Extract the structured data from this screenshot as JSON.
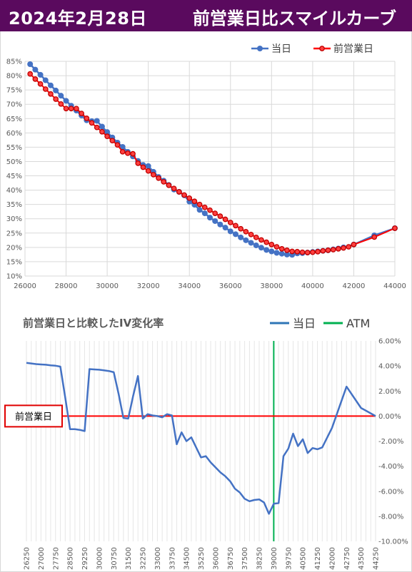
{
  "header": {
    "date": "2024年2月28日",
    "title": "前営業日比スマイルカーブ"
  },
  "chart_data": [
    {
      "type": "line",
      "title": "",
      "xlim": [
        26000,
        44000
      ],
      "ylim": [
        10,
        85
      ],
      "x_ticks": [
        "26000",
        "28000",
        "30000",
        "32000",
        "34000",
        "36000",
        "38000",
        "40000",
        "42000",
        "44000"
      ],
      "y_ticks": [
        "10%",
        "15%",
        "20%",
        "25%",
        "30%",
        "35%",
        "40%",
        "45%",
        "50%",
        "55%",
        "60%",
        "65%",
        "70%",
        "75%",
        "80%",
        "85%"
      ],
      "legend": [
        "当日",
        "前営業日"
      ],
      "legend_position": "top-right",
      "series": [
        {
          "name": "当日",
          "color": "#4472c4",
          "points": [
            [
              26250,
              84
            ],
            [
              26500,
              82.1
            ],
            [
              26750,
              80.3
            ],
            [
              27000,
              78.4
            ],
            [
              27250,
              76.6
            ],
            [
              27500,
              74.8
            ],
            [
              27750,
              73
            ],
            [
              28000,
              71.2
            ],
            [
              28250,
              69.5
            ],
            [
              28500,
              67.8
            ],
            [
              28750,
              66.1
            ],
            [
              29000,
              64.4
            ],
            [
              29250,
              64.1
            ],
            [
              29500,
              64.2
            ],
            [
              29750,
              62.2
            ],
            [
              30000,
              60.3
            ],
            [
              30250,
              58.4
            ],
            [
              30500,
              56.6
            ],
            [
              30750,
              55.1
            ],
            [
              31000,
              53.4
            ],
            [
              31250,
              51.8
            ],
            [
              31500,
              50.2
            ],
            [
              31750,
              48.8
            ],
            [
              32000,
              48.4
            ],
            [
              32250,
              46.4
            ],
            [
              32500,
              44.6
            ],
            [
              32750,
              43.3
            ],
            [
              33000,
              41.8
            ],
            [
              33250,
              40.2
            ],
            [
              33500,
              39.4
            ],
            [
              33750,
              38.2
            ],
            [
              34000,
              36
            ],
            [
              34250,
              34.9
            ],
            [
              34500,
              33.1
            ],
            [
              34750,
              31.9
            ],
            [
              35000,
              30.4
            ],
            [
              35250,
              29.2
            ],
            [
              35500,
              28
            ],
            [
              35750,
              26.9
            ],
            [
              36000,
              25.6
            ],
            [
              36250,
              24.6
            ],
            [
              36500,
              23.5
            ],
            [
              36750,
              22.5
            ],
            [
              37000,
              21.6
            ],
            [
              37250,
              20.7
            ],
            [
              37500,
              19.9
            ],
            [
              37750,
              19.1
            ],
            [
              38000,
              18.6
            ],
            [
              38250,
              18.1
            ],
            [
              38500,
              17.8
            ],
            [
              38750,
              17.5
            ],
            [
              39000,
              17.4
            ],
            [
              39250,
              17.9
            ],
            [
              39500,
              18
            ],
            [
              39750,
              18.2
            ],
            [
              40000,
              18.4
            ],
            [
              40250,
              18.6
            ],
            [
              40500,
              18.8
            ],
            [
              40750,
              19
            ],
            [
              41000,
              19.3
            ],
            [
              41250,
              19.6
            ],
            [
              41500,
              20
            ],
            [
              42000,
              21
            ],
            [
              43000,
              24.2
            ],
            [
              44000,
              26.7
            ]
          ]
        },
        {
          "name": "前営業日",
          "color": "#ff0000",
          "points": [
            [
              26250,
              80.6
            ],
            [
              26500,
              78.8
            ],
            [
              26750,
              77.1
            ],
            [
              27000,
              75.3
            ],
            [
              27250,
              73.6
            ],
            [
              27500,
              71.8
            ],
            [
              27750,
              70.1
            ],
            [
              28000,
              68.5
            ],
            [
              28250,
              68.5
            ],
            [
              28500,
              68.5
            ],
            [
              28750,
              66.8
            ],
            [
              29000,
              65.1
            ],
            [
              29250,
              63.5
            ],
            [
              29500,
              61.9
            ],
            [
              29750,
              60.4
            ],
            [
              30000,
              58.8
            ],
            [
              30250,
              57.3
            ],
            [
              30500,
              55.8
            ],
            [
              30750,
              53.4
            ],
            [
              31000,
              52.9
            ],
            [
              31250,
              52.7
            ],
            [
              31500,
              49.4
            ],
            [
              31750,
              48
            ],
            [
              32000,
              46.7
            ],
            [
              32250,
              45.4
            ],
            [
              32500,
              44.2
            ],
            [
              32750,
              42.9
            ],
            [
              33000,
              41.7
            ],
            [
              33250,
              40.6
            ],
            [
              33500,
              39.4
            ],
            [
              33750,
              38.3
            ],
            [
              34000,
              37.2
            ],
            [
              34250,
              36.1
            ],
            [
              34500,
              35
            ],
            [
              34750,
              34
            ],
            [
              35000,
              33
            ],
            [
              35250,
              31.9
            ],
            [
              35500,
              30.9
            ],
            [
              35750,
              29.8
            ],
            [
              36000,
              28.7
            ],
            [
              36250,
              27.6
            ],
            [
              36500,
              26.5
            ],
            [
              36750,
              25.5
            ],
            [
              37000,
              24.5
            ],
            [
              37250,
              23.5
            ],
            [
              37500,
              22.6
            ],
            [
              37750,
              21.8
            ],
            [
              38000,
              21
            ],
            [
              38250,
              20.2
            ],
            [
              38500,
              19.5
            ],
            [
              38750,
              19
            ],
            [
              39000,
              18.6
            ],
            [
              39250,
              18.5
            ],
            [
              39500,
              18.3
            ],
            [
              39750,
              18.2
            ],
            [
              40000,
              18.3
            ],
            [
              40250,
              18.5
            ],
            [
              40500,
              18.8
            ],
            [
              40750,
              19
            ],
            [
              41000,
              19.2
            ],
            [
              41250,
              19.5
            ],
            [
              41500,
              19.8
            ],
            [
              41750,
              20.2
            ],
            [
              42000,
              21
            ],
            [
              43000,
              23.6
            ],
            [
              44000,
              26.7
            ]
          ]
        }
      ]
    },
    {
      "type": "line",
      "title": "前営業日と比較したIV変化率",
      "ylim": [
        -10,
        6
      ],
      "y_ticks": [
        "6.00%",
        "4.00%",
        "2.00%",
        "0.00%",
        "-2.00%",
        "-4.00%",
        "-6.00%",
        "-8.00%",
        "-10.00%"
      ],
      "x_tick_labels": [
        "26250",
        "27000",
        "27750",
        "28500",
        "29250",
        "30000",
        "30750",
        "31500",
        "32250",
        "33000",
        "33750",
        "34500",
        "35250",
        "36000",
        "36750",
        "37500",
        "38250",
        "39000",
        "39750",
        "40500",
        "41250",
        "42000",
        "42750",
        "43500",
        "44250"
      ],
      "legend": [
        "当日",
        "ATM"
      ],
      "legend_position": "top-right",
      "zero_line_label": "前営業日",
      "atm_strike": 39000,
      "series": [
        {
          "name": "当日",
          "color": "#4472c4",
          "points": [
            [
              26250,
              4.25
            ],
            [
              26500,
              4.2
            ],
            [
              26750,
              4.15
            ],
            [
              27000,
              4.12
            ],
            [
              27250,
              4.1
            ],
            [
              27500,
              4.05
            ],
            [
              27750,
              4.02
            ],
            [
              28000,
              3.95
            ],
            [
              28250,
              1.5
            ],
            [
              28500,
              -1.05
            ],
            [
              28750,
              -1.05
            ],
            [
              29000,
              -1.1
            ],
            [
              29250,
              -1.2
            ],
            [
              29500,
              3.75
            ],
            [
              29750,
              3.72
            ],
            [
              30000,
              3.7
            ],
            [
              30250,
              3.65
            ],
            [
              30500,
              3.6
            ],
            [
              30750,
              3.5
            ],
            [
              31000,
              1.8
            ],
            [
              31250,
              -0.15
            ],
            [
              31500,
              -0.2
            ],
            [
              31750,
              1.6
            ],
            [
              32000,
              3.2
            ],
            [
              32250,
              -0.2
            ],
            [
              32500,
              0.15
            ],
            [
              32750,
              0.05
            ],
            [
              33000,
              0
            ],
            [
              33250,
              -0.1
            ],
            [
              33500,
              0.15
            ],
            [
              33750,
              0.05
            ],
            [
              34000,
              -2.25
            ],
            [
              34250,
              -1.3
            ],
            [
              34500,
              -2
            ],
            [
              34750,
              -1.7
            ],
            [
              35000,
              -2.5
            ],
            [
              35250,
              -3.3
            ],
            [
              35500,
              -3.2
            ],
            [
              35750,
              -3.7
            ],
            [
              36000,
              -4.1
            ],
            [
              36250,
              -4.5
            ],
            [
              36500,
              -4.8
            ],
            [
              36750,
              -5.2
            ],
            [
              37000,
              -5.8
            ],
            [
              37250,
              -6.1
            ],
            [
              37500,
              -6.6
            ],
            [
              37750,
              -6.8
            ],
            [
              38000,
              -6.7
            ],
            [
              38250,
              -6.65
            ],
            [
              38500,
              -6.9
            ],
            [
              38750,
              -7.8
            ],
            [
              39000,
              -7
            ],
            [
              39250,
              -6.95
            ],
            [
              39500,
              -3.2
            ],
            [
              39750,
              -2.6
            ],
            [
              40000,
              -1.4
            ],
            [
              40250,
              -2.4
            ],
            [
              40500,
              -1.85
            ],
            [
              40750,
              -2.95
            ],
            [
              41000,
              -2.55
            ],
            [
              41250,
              -2.65
            ],
            [
              41500,
              -2.5
            ],
            [
              42000,
              -0.95
            ],
            [
              42750,
              2.35
            ],
            [
              43500,
              0.65
            ],
            [
              44250,
              0
            ]
          ]
        }
      ]
    }
  ]
}
